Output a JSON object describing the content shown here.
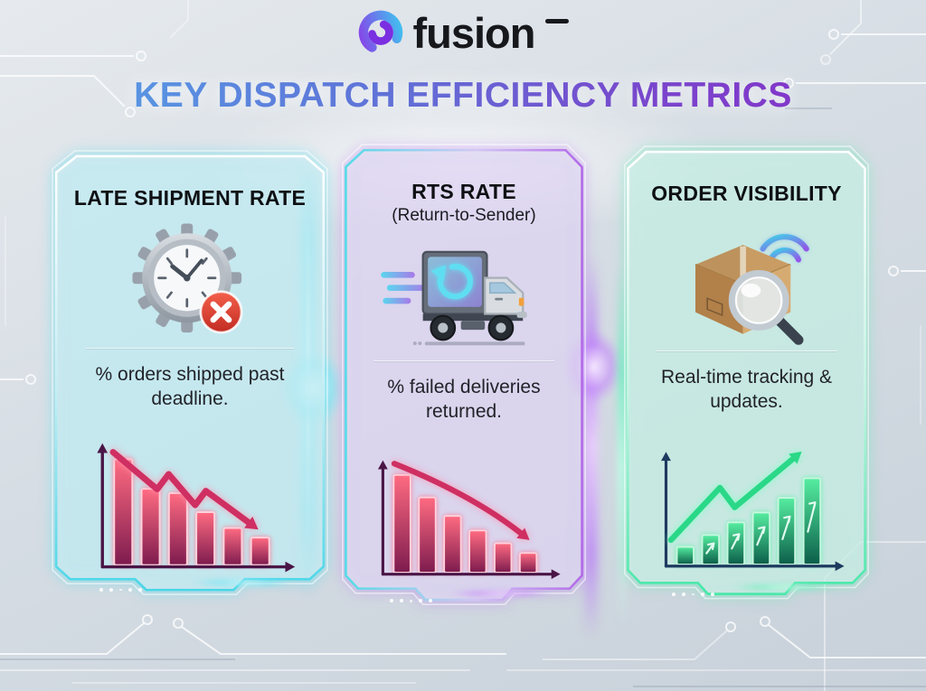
{
  "brand": {
    "name": "fusion",
    "logo_icon": "fusion-swirl-icon",
    "logo_colors": [
      "#3ec6f0",
      "#8a3fe8"
    ]
  },
  "title": "KEY DISPATCH EFFICIENCY METRICS",
  "palette": {
    "title_gradient_from": "#55a6e8",
    "title_gradient_to": "#8a2bc8",
    "card1_accent": "#49d6e8",
    "card2_accent": "#b46ae8",
    "card3_accent": "#46e8a8",
    "background": "#d6dde4"
  },
  "cards": [
    {
      "title": "LATE SHIPMENT RATE",
      "subtitle": "",
      "icon": "clock-gear-error-icon",
      "description": "% orders shipped past deadline."
    },
    {
      "title": "RTS RATE",
      "subtitle": "(Return-to-Sender)",
      "icon": "return-truck-icon",
      "description": "% failed deliveries returned."
    },
    {
      "title": "ORDER VISIBILITY",
      "subtitle": "",
      "icon": "package-search-wifi-icon",
      "description": "Real-time tracking & updates."
    }
  ],
  "chart_data": [
    {
      "type": "bar",
      "unit": "relative_height_percent",
      "values": [
        100,
        72,
        68,
        50,
        35,
        26
      ],
      "trend": "down",
      "arrow": "zigzag",
      "axis_labels": false,
      "bar_color_top": "#ff6b81",
      "bar_color_bottom": "#7d1b4e",
      "bar_stroke": "#ffd2dc",
      "bar_glow": "rgba(255,110,140,0.85)",
      "axis_color": "#4a1546",
      "arrow_color": "#cf2f62",
      "arrow_glow": "rgba(255,150,175,0.9)"
    },
    {
      "type": "bar",
      "unit": "relative_height_percent",
      "values": [
        100,
        77,
        58,
        43,
        30,
        20
      ],
      "trend": "down",
      "arrow": "curve",
      "axis_labels": false,
      "bar_color_top": "#ff6b81",
      "bar_color_bottom": "#7d1b4e",
      "bar_stroke": "#ffd2dc",
      "bar_glow": "rgba(255,110,140,0.85)",
      "axis_color": "#4a1546",
      "arrow_color": "#cf2f62",
      "arrow_glow": "rgba(255,150,175,0.9)"
    },
    {
      "type": "bar",
      "unit": "relative_height_percent",
      "values": [
        18,
        30,
        43,
        53,
        68,
        88
      ],
      "trend": "up",
      "arrow": "zigzag",
      "axis_labels": false,
      "bar_color_top": "#55eda0",
      "bar_color_bottom": "#0b5e49",
      "bar_stroke": "#c9f7e0",
      "bar_glow": "rgba(90,240,170,0.85)",
      "axis_color": "#1d3a5f",
      "arrow_color": "#2ad888",
      "arrow_glow": "rgba(130,255,200,0.9)"
    }
  ]
}
